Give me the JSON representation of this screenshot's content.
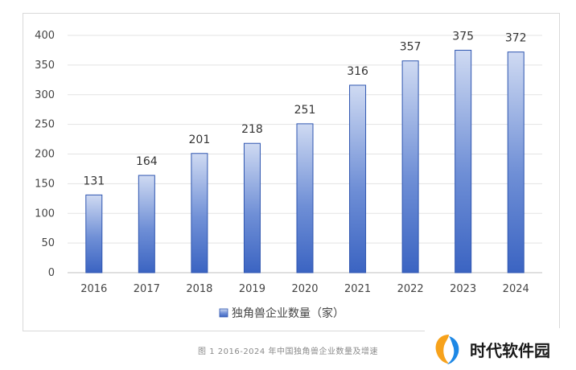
{
  "chart_data": {
    "type": "bar",
    "categories": [
      "2016",
      "2017",
      "2018",
      "2019",
      "2020",
      "2021",
      "2022",
      "2023",
      "2024"
    ],
    "values": [
      131,
      164,
      201,
      218,
      251,
      316,
      357,
      375,
      372
    ],
    "series": [
      {
        "name": "独角兽企业数量（家）",
        "values": [
          131,
          164,
          201,
          218,
          251,
          316,
          357,
          375,
          372
        ]
      }
    ],
    "title": "",
    "xlabel": "",
    "ylabel": "",
    "ylim": [
      0,
      400
    ],
    "yticks": [
      0,
      50,
      100,
      150,
      200,
      250,
      300,
      350,
      400
    ],
    "grid": true,
    "legend": "bottom",
    "bar_color_top": "#cfdaf2",
    "bar_color_bottom": "#3b64c2",
    "bar_edge": "#2f56b0"
  },
  "caption": "图 1 2016-2024 年中国独角兽企业数量及增速",
  "watermark": {
    "text": "时代软件园",
    "logo_colors": [
      "#f7a21b",
      "#1e88e5"
    ]
  }
}
